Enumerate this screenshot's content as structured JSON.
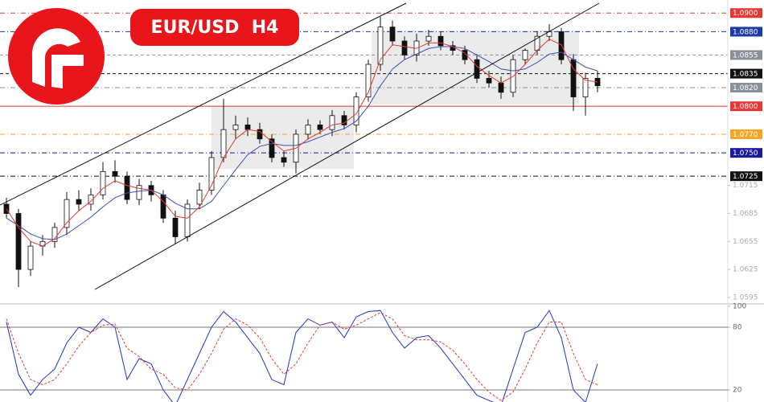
{
  "chart_data": {
    "type": "candlestick",
    "title": "EUR/USD  H4",
    "open": [
      1.0695,
      1.0685,
      1.0625,
      1.065,
      1.0655,
      1.067,
      1.07,
      1.0695,
      1.0705,
      1.073,
      1.0725,
      1.07,
      1.0715,
      1.0705,
      1.068,
      1.066,
      1.0695,
      1.071,
      1.0745,
      1.0775,
      1.078,
      1.0775,
      1.0765,
      1.0745,
      1.074,
      1.077,
      1.078,
      1.0775,
      1.079,
      1.078,
      1.081,
      1.0845,
      1.0885,
      1.087,
      1.0855,
      1.087,
      1.0875,
      1.0865,
      1.086,
      1.085,
      1.083,
      1.0825,
      1.0815,
      1.085,
      1.086,
      1.0875,
      1.088,
      1.085,
      1.081,
      1.083
    ],
    "high": [
      1.0702,
      1.069,
      1.0655,
      1.0662,
      1.0675,
      1.0708,
      1.071,
      1.0712,
      1.074,
      1.0742,
      1.073,
      1.0722,
      1.072,
      1.071,
      1.0688,
      1.07,
      1.0718,
      1.0752,
      1.0808,
      1.079,
      1.0788,
      1.0782,
      1.077,
      1.0752,
      1.0775,
      1.0786,
      1.0785,
      1.0796,
      1.0795,
      1.0815,
      1.085,
      1.0896,
      1.0892,
      1.0875,
      1.0878,
      1.0882,
      1.088,
      1.087,
      1.0865,
      1.0856,
      1.0838,
      1.0832,
      1.0855,
      1.0862,
      1.088,
      1.0888,
      1.0884,
      1.0856,
      1.0836,
      1.0838
    ],
    "low": [
      1.068,
      1.0606,
      1.0618,
      1.064,
      1.0648,
      1.0662,
      1.0688,
      1.0688,
      1.07,
      1.0718,
      1.0695,
      1.0694,
      1.0698,
      1.0675,
      1.0652,
      1.0655,
      1.069,
      1.0705,
      1.074,
      1.0765,
      1.0768,
      1.076,
      1.074,
      1.0735,
      1.0728,
      1.0764,
      1.077,
      1.0768,
      1.0775,
      1.0772,
      1.0805,
      1.0838,
      1.0865,
      1.085,
      1.0848,
      1.0865,
      1.086,
      1.0855,
      1.0845,
      1.0825,
      1.082,
      1.0808,
      1.081,
      1.0845,
      1.0855,
      1.087,
      1.0845,
      1.0795,
      1.079,
      1.0815
    ],
    "close": [
      1.0685,
      1.0625,
      1.065,
      1.0655,
      1.067,
      1.07,
      1.0695,
      1.0705,
      1.073,
      1.0725,
      1.07,
      1.0715,
      1.0705,
      1.068,
      1.066,
      1.0695,
      1.071,
      1.0745,
      1.0775,
      1.078,
      1.0775,
      1.0765,
      1.0745,
      1.074,
      1.077,
      1.078,
      1.0775,
      1.079,
      1.078,
      1.081,
      1.0845,
      1.0885,
      1.087,
      1.0855,
      1.087,
      1.0875,
      1.0865,
      1.086,
      1.085,
      1.083,
      1.0825,
      1.0815,
      1.085,
      1.086,
      1.0875,
      1.088,
      1.085,
      1.081,
      1.083,
      1.0822
    ],
    "ma_fast": {
      "color": "#e53935",
      "values": [
        1.069,
        1.067,
        1.0655,
        1.065,
        1.0658,
        1.0675,
        1.0688,
        1.0698,
        1.0712,
        1.072,
        1.0715,
        1.0712,
        1.071,
        1.0698,
        1.0682,
        1.068,
        1.0692,
        1.0715,
        1.0745,
        1.0765,
        1.0775,
        1.0773,
        1.0762,
        1.0752,
        1.0755,
        1.0765,
        1.0772,
        1.078,
        1.0782,
        1.0792,
        1.0815,
        1.085,
        1.0866,
        1.0864,
        1.0862,
        1.0868,
        1.0868,
        1.0864,
        1.0857,
        1.0843,
        1.0833,
        1.0825,
        1.0832,
        1.0845,
        1.086,
        1.0872,
        1.0866,
        1.084,
        1.0828,
        1.0826
      ]
    },
    "ma_slow": {
      "color": "#3f51b5",
      "values": [
        1.068,
        1.0672,
        1.0663,
        1.0658,
        1.0657,
        1.0663,
        1.0672,
        1.0681,
        1.0692,
        1.0702,
        1.0707,
        1.0709,
        1.071,
        1.0705,
        1.0696,
        1.069,
        1.069,
        1.0698,
        1.0715,
        1.0732,
        1.0748,
        1.0757,
        1.076,
        1.0758,
        1.0758,
        1.0762,
        1.0767,
        1.0772,
        1.0776,
        1.0784,
        1.08,
        1.0822,
        1.084,
        1.085,
        1.0856,
        1.0862,
        1.0864,
        1.0864,
        1.0862,
        1.0855,
        1.0848,
        1.084,
        1.0838,
        1.084,
        1.0847,
        1.0856,
        1.0858,
        1.085,
        1.0842,
        1.0838
      ]
    },
    "ylim": [
      1.0588,
      1.0914
    ],
    "yticks": [
      {
        "value": 1.0715,
        "label": "1.0715"
      },
      {
        "value": 1.0685,
        "label": "1.0685"
      },
      {
        "value": 1.0655,
        "label": "1.0655"
      },
      {
        "value": 1.0625,
        "label": "1.0625"
      },
      {
        "value": 1.0595,
        "label": "1.0595"
      }
    ],
    "levels": [
      {
        "value": 1.09,
        "label": "1.0900",
        "color": "#e53935",
        "dash": "dashdot"
      },
      {
        "value": 1.088,
        "label": "1.0880",
        "color": "#1a3aa8",
        "dash": "dashdot"
      },
      {
        "value": 1.0855,
        "label": "1.0855",
        "color": "#8a9099",
        "dash": "dashed"
      },
      {
        "value": 1.0835,
        "label": "1.0835",
        "color": "#111111",
        "dash": "dashed"
      },
      {
        "value": 1.082,
        "label": "1.0820",
        "color": "#8a9099",
        "dash": "dashdot"
      },
      {
        "value": 1.08,
        "label": "1.0800",
        "color": "#e53935",
        "dash": "solid"
      },
      {
        "value": 1.077,
        "label": "1.0770",
        "color": "#f5a623",
        "dash": "dashdot"
      },
      {
        "value": 1.075,
        "label": "1.0750",
        "color": "#1a1a9e",
        "dash": "dashdot"
      },
      {
        "value": 1.0725,
        "label": "1.0725",
        "color": "#111111",
        "dash": "dashdot"
      }
    ],
    "stochastic": {
      "k": {
        "color": "#2233cc",
        "values": [
          85,
          35,
          15,
          30,
          40,
          65,
          80,
          75,
          88,
          80,
          30,
          50,
          45,
          20,
          5,
          30,
          55,
          80,
          95,
          85,
          70,
          55,
          30,
          25,
          75,
          88,
          82,
          85,
          70,
          90,
          95,
          96,
          75,
          60,
          70,
          72,
          60,
          45,
          30,
          15,
          10,
          5,
          40,
          75,
          80,
          96,
          70,
          20,
          8,
          45
        ]
      },
      "d": {
        "color": "#e53935",
        "values": [
          88,
          55,
          30,
          25,
          30,
          45,
          62,
          75,
          82,
          83,
          60,
          52,
          40,
          35,
          22,
          20,
          35,
          55,
          78,
          88,
          82,
          70,
          50,
          35,
          45,
          65,
          82,
          85,
          78,
          82,
          88,
          94,
          88,
          72,
          68,
          68,
          66,
          58,
          45,
          30,
          18,
          10,
          18,
          40,
          65,
          85,
          85,
          55,
          30,
          25
        ]
      },
      "ylim": [
        8.5,
        102.3
      ],
      "yticks": [
        100,
        80,
        20
      ],
      "levels": [
        80,
        20
      ]
    }
  }
}
